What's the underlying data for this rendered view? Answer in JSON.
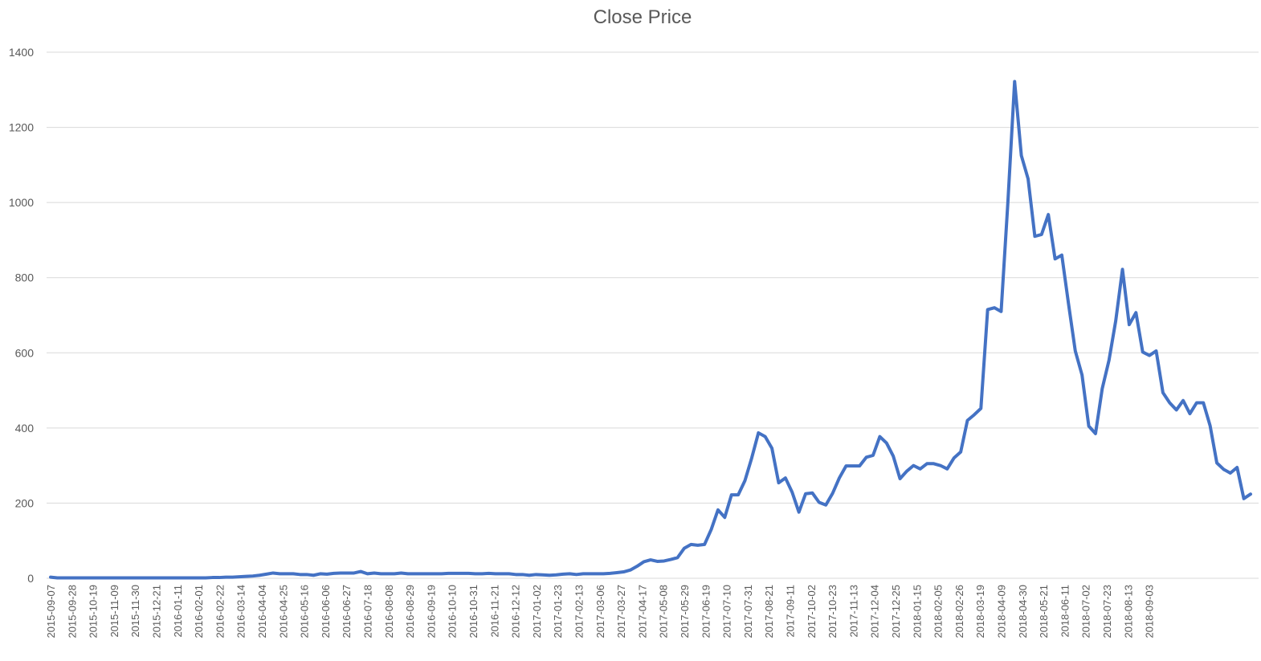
{
  "chart_data": {
    "type": "line",
    "title": "Close Price",
    "xlabel": "",
    "ylabel": "",
    "ylim": [
      0,
      1400
    ],
    "yticks": [
      0,
      200,
      400,
      600,
      800,
      1000,
      1200,
      1400
    ],
    "grid": true,
    "legend": "none",
    "color": "#4472C4",
    "x_tick_labels": [
      "2015-09-07",
      "2015-09-28",
      "2015-10-19",
      "2015-11-09",
      "2015-11-30",
      "2015-12-21",
      "2016-01-11",
      "2016-02-01",
      "2016-02-22",
      "2016-03-14",
      "2016-04-04",
      "2016-04-25",
      "2016-05-16",
      "2016-06-06",
      "2016-06-27",
      "2016-07-18",
      "2016-08-08",
      "2016-08-29",
      "2016-09-19",
      "2016-10-10",
      "2016-10-31",
      "2016-11-21",
      "2016-12-12",
      "2017-01-02",
      "2017-01-23",
      "2017-02-13",
      "2017-03-06",
      "2017-03-27",
      "2017-04-17",
      "2017-05-08",
      "2017-05-29",
      "2017-06-19",
      "2017-07-10",
      "2017-07-31",
      "2017-08-21",
      "2017-09-11",
      "2017-10-02",
      "2017-10-23",
      "2017-11-13",
      "2017-12-04",
      "2017-12-25",
      "2018-01-15",
      "2018-02-05",
      "2018-02-26",
      "2018-03-19",
      "2018-04-09",
      "2018-04-30",
      "2018-05-21",
      "2018-06-11",
      "2018-07-02",
      "2018-07-23",
      "2018-08-13",
      "2018-09-03"
    ],
    "series": [
      {
        "values": [
          3,
          1,
          1,
          1,
          1,
          1,
          1,
          1,
          1,
          1,
          1,
          1,
          1,
          1,
          1,
          1,
          1,
          1,
          1,
          1,
          1,
          1,
          1,
          1,
          2,
          2,
          3,
          3,
          4,
          5,
          6,
          8,
          11,
          14,
          12,
          12,
          12,
          10,
          10,
          8,
          12,
          11,
          13,
          14,
          14,
          14,
          18,
          12,
          14,
          12,
          12,
          12,
          14,
          12,
          12,
          12,
          12,
          12,
          12,
          13,
          13,
          13,
          13,
          12,
          12,
          13,
          12,
          12,
          12,
          10,
          10,
          8,
          10,
          9,
          8,
          9,
          11,
          12,
          10,
          12,
          12,
          12,
          12,
          13,
          15,
          17,
          22,
          32,
          44,
          49,
          45,
          46,
          50,
          55,
          80,
          90,
          88,
          90,
          130,
          182,
          162,
          222,
          222,
          260,
          320,
          387,
          377,
          346,
          254,
          267,
          229,
          176,
          225,
          227,
          202,
          195,
          226,
          267,
          299,
          299,
          299,
          322,
          327,
          377,
          360,
          325,
          265,
          285,
          300,
          291,
          305,
          305,
          300,
          291,
          320,
          336,
          420,
          435,
          452,
          715,
          720,
          710,
          1000,
          1322,
          1125,
          1063,
          910,
          915,
          968,
          850,
          860,
          730,
          605,
          541,
          405,
          385,
          505,
          580,
          685,
          822,
          675,
          707,
          602,
          593,
          605,
          494,
          467,
          448,
          473,
          438,
          467,
          467,
          406,
          307,
          290,
          280,
          295,
          212,
          224
        ]
      }
    ]
  }
}
